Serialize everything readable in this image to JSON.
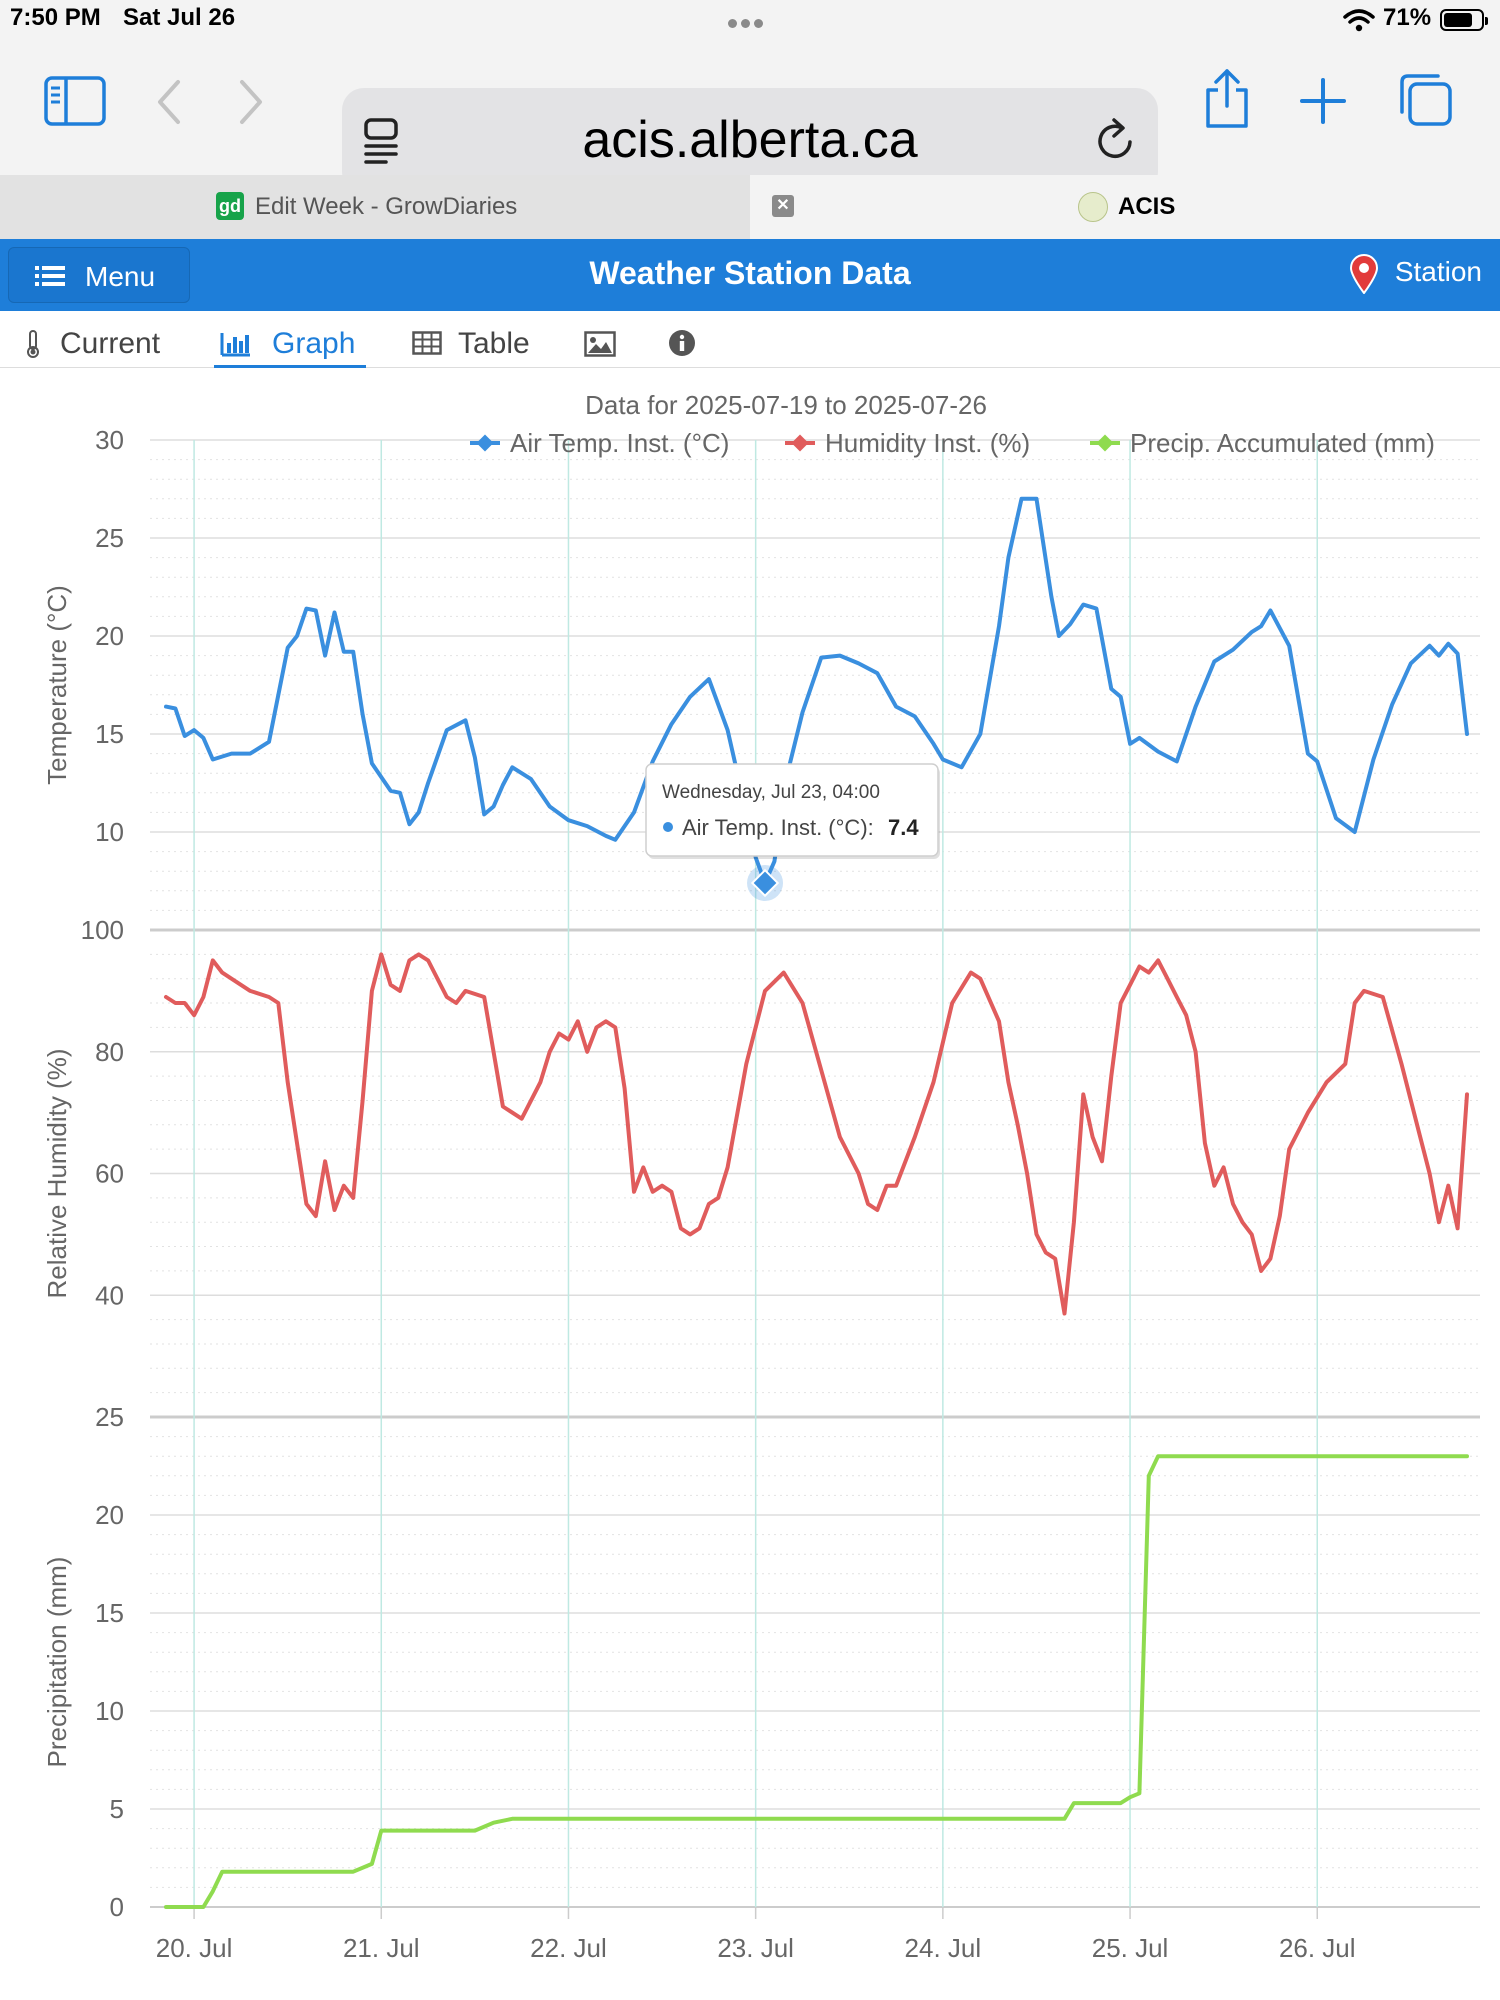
{
  "status_bar": {
    "time": "7:50 PM",
    "date": "Sat Jul 26",
    "battery": "71%"
  },
  "browser": {
    "url": "acis.alberta.ca"
  },
  "tabs": [
    {
      "label": "Edit Week - GrowDiaries",
      "favicon": "gd"
    },
    {
      "label": "ACIS"
    }
  ],
  "app": {
    "menu_label": "Menu",
    "title": "Weather Station Data",
    "station_label": "Station"
  },
  "nav": {
    "current": "Current",
    "graph": "Graph",
    "table": "Table"
  },
  "chart_data": {
    "type": "line",
    "title": "Data for 2025-07-19 to 2025-07-26",
    "x_tick_labels": [
      "20. Jul",
      "21. Jul",
      "22. Jul",
      "23. Jul",
      "24. Jul",
      "25. Jul",
      "26. Jul"
    ],
    "x_range_days": [
      19.85,
      26.8
    ],
    "legend_position": "top-right",
    "grid": true,
    "panels": [
      {
        "ylabel": "Temperature (°C)",
        "ylim": [
          5,
          30
        ],
        "ticks": [
          10,
          15,
          20,
          25,
          30
        ]
      },
      {
        "ylabel": "Relative Humidity (%)",
        "ylim": [
          20,
          100
        ],
        "ticks": [
          40,
          60,
          80,
          100
        ]
      },
      {
        "ylabel": "Precipitation (mm)",
        "ylim": [
          0,
          25
        ],
        "ticks": [
          0,
          5,
          10,
          15,
          20,
          25
        ]
      }
    ],
    "series": [
      {
        "name": "Air Temp. Inst. (°C)",
        "color": "#3a8fdf",
        "panel": 0,
        "x": [
          19.85,
          19.9,
          19.95,
          20,
          20.05,
          20.1,
          20.2,
          20.3,
          20.4,
          20.5,
          20.55,
          20.6,
          20.65,
          20.7,
          20.75,
          20.8,
          20.85,
          20.9,
          20.95,
          21,
          21.05,
          21.1,
          21.15,
          21.2,
          21.25,
          21.35,
          21.45,
          21.5,
          21.55,
          21.6,
          21.65,
          21.7,
          21.8,
          21.9,
          22,
          22.1,
          22.2,
          22.25,
          22.35,
          22.45,
          22.55,
          22.65,
          22.75,
          22.85,
          22.95,
          23,
          23.05,
          23.1,
          23.17,
          23.25,
          23.35,
          23.45,
          23.55,
          23.65,
          23.75,
          23.85,
          23.95,
          24,
          24.1,
          24.2,
          24.3,
          24.35,
          24.42,
          24.5,
          24.58,
          24.62,
          24.68,
          24.75,
          24.82,
          24.9,
          24.95,
          25,
          25.05,
          25.15,
          25.25,
          25.35,
          25.45,
          25.55,
          25.65,
          25.7,
          25.75,
          25.85,
          25.95,
          26,
          26.1,
          26.2,
          26.3,
          26.4,
          26.5,
          26.6,
          26.65,
          26.7,
          26.75,
          26.8
        ],
        "y": [
          16.4,
          16.3,
          14.9,
          15.2,
          14.8,
          13.7,
          14.0,
          14.0,
          14.6,
          19.4,
          20.0,
          21.4,
          21.3,
          19.0,
          21.2,
          19.2,
          19.2,
          16.0,
          13.5,
          12.8,
          12.1,
          12.0,
          10.4,
          11.0,
          12.5,
          15.2,
          15.7,
          13.8,
          10.9,
          11.3,
          12.4,
          13.3,
          12.7,
          11.3,
          10.6,
          10.3,
          9.8,
          9.6,
          11.0,
          13.6,
          15.5,
          16.9,
          17.8,
          15.2,
          11.0,
          8.7,
          7.4,
          8.5,
          13.0,
          16.1,
          18.9,
          19.0,
          18.6,
          18.1,
          16.4,
          15.9,
          14.5,
          13.7,
          13.3,
          15.0,
          20.5,
          24.0,
          27.0,
          27.0,
          22.0,
          20.0,
          20.6,
          21.6,
          21.4,
          17.3,
          16.9,
          14.5,
          14.8,
          14.1,
          13.6,
          16.4,
          18.7,
          19.3,
          20.2,
          20.5,
          21.3,
          19.5,
          14.0,
          13.6,
          10.7,
          10.0,
          13.7,
          16.5,
          18.6,
          19.5,
          19.0,
          19.6,
          19.1,
          15.0
        ]
      },
      {
        "name": "Humidity Inst. (%)",
        "color": "#e05c5c",
        "panel": 1,
        "x": [
          19.85,
          19.9,
          19.95,
          20,
          20.05,
          20.1,
          20.15,
          20.2,
          20.3,
          20.4,
          20.45,
          20.5,
          20.55,
          20.6,
          20.65,
          20.7,
          20.75,
          20.8,
          20.85,
          20.9,
          20.95,
          21,
          21.05,
          21.1,
          21.15,
          21.2,
          21.25,
          21.35,
          21.4,
          21.45,
          21.55,
          21.65,
          21.75,
          21.85,
          21.9,
          21.95,
          22,
          22.05,
          22.1,
          22.15,
          22.2,
          22.25,
          22.3,
          22.35,
          22.4,
          22.45,
          22.5,
          22.55,
          22.6,
          22.65,
          22.7,
          22.75,
          22.8,
          22.85,
          22.95,
          23.05,
          23.15,
          23.25,
          23.35,
          23.45,
          23.55,
          23.6,
          23.65,
          23.7,
          23.75,
          23.85,
          23.95,
          24.05,
          24.15,
          24.2,
          24.3,
          24.35,
          24.4,
          24.45,
          24.5,
          24.55,
          24.6,
          24.65,
          24.7,
          24.75,
          24.8,
          24.85,
          24.9,
          24.95,
          25,
          25.05,
          25.1,
          25.15,
          25.2,
          25.25,
          25.3,
          25.35,
          25.4,
          25.45,
          25.5,
          25.55,
          25.6,
          25.65,
          25.7,
          25.75,
          25.8,
          25.85,
          25.95,
          26.05,
          26.15,
          26.2,
          26.25,
          26.35,
          26.45,
          26.55,
          26.6,
          26.65,
          26.7,
          26.75,
          26.8
        ],
        "y": [
          89,
          88,
          88,
          86,
          89,
          95,
          93,
          92,
          90,
          89,
          88,
          75,
          65,
          55,
          53,
          62,
          54,
          58,
          56,
          72,
          90,
          96,
          91,
          90,
          95,
          96,
          95,
          89,
          88,
          90,
          89,
          71,
          69,
          75,
          80,
          83,
          82,
          85,
          80,
          84,
          85,
          84,
          74,
          57,
          61,
          57,
          58,
          57,
          51,
          50,
          51,
          55,
          56,
          61,
          78,
          90,
          93,
          88,
          77,
          66,
          60,
          55,
          54,
          58,
          58,
          66,
          75,
          88,
          93,
          92,
          85,
          75,
          68,
          60,
          50,
          47,
          46,
          37,
          52,
          73,
          66,
          62,
          76,
          88,
          91,
          94,
          93,
          95,
          92,
          89,
          86,
          80,
          65,
          58,
          61,
          55,
          52,
          50,
          44,
          46,
          53,
          64,
          70,
          75,
          78,
          88,
          90,
          89,
          78,
          66,
          60,
          52,
          58,
          51,
          73
        ]
      },
      {
        "name": "Precip. Accumulated (mm)",
        "color": "#8fdb4f",
        "panel": 2,
        "x": [
          19.85,
          20.05,
          20.1,
          20.15,
          20.2,
          20.55,
          20.6,
          20.7,
          20.85,
          20.95,
          21,
          21.05,
          21.1,
          21.5,
          21.6,
          21.7,
          21.8,
          22,
          22.5,
          23,
          23.5,
          24,
          24.5,
          24.65,
          24.7,
          24.75,
          24.95,
          25,
          25.05,
          25.1,
          25.15,
          25.2,
          25.3,
          25.5,
          26,
          26.5,
          26.8
        ],
        "y": [
          0,
          0,
          0.8,
          1.8,
          1.8,
          1.8,
          1.8,
          1.8,
          1.8,
          2.2,
          3.9,
          3.9,
          3.9,
          3.9,
          4.3,
          4.5,
          4.5,
          4.5,
          4.5,
          4.5,
          4.5,
          4.5,
          4.5,
          4.5,
          5.3,
          5.3,
          5.3,
          5.6,
          5.8,
          22.0,
          23.0,
          23.0,
          23.0,
          23.0,
          23.0,
          23.0,
          23.0
        ]
      }
    ],
    "tooltip": {
      "header": "Wednesday, Jul 23, 04:00",
      "series": "Air Temp. Inst. (°C):",
      "value": "7.4",
      "x": 23.05,
      "y": 7.4
    }
  }
}
